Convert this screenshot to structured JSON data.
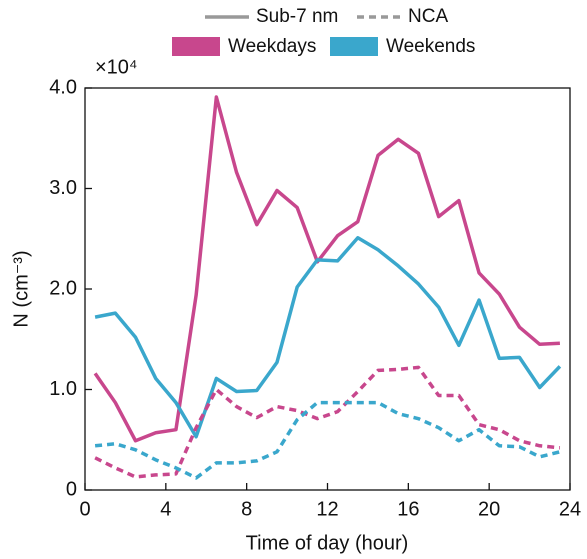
{
  "chart_data": {
    "type": "line",
    "xlabel": "Time of day (hour)",
    "ylabel": "N (cm⁻³)",
    "y_multiplier": "×10⁴",
    "xlim": [
      0,
      24
    ],
    "xticks": [
      0,
      4,
      8,
      12,
      16,
      20,
      24
    ],
    "ylim": [
      0,
      4
    ],
    "yticks": [
      0,
      {
        "value": 1,
        "label": "1.0"
      },
      {
        "value": 2,
        "label": "2.0"
      },
      {
        "value": 3,
        "label": "3.0"
      },
      {
        "value": 4,
        "label": "4.0"
      }
    ],
    "styles": [
      {
        "name": "Sub-7 nm",
        "dashed": false
      },
      {
        "name": "NCA",
        "dashed": true
      }
    ],
    "groups": [
      {
        "name": "Weekdays",
        "color": "#c8478d"
      },
      {
        "name": "Weekends",
        "color": "#3aa7cc"
      }
    ],
    "x": [
      0.5,
      1.5,
      2.5,
      3.5,
      4.5,
      5.5,
      6.5,
      7.5,
      8.5,
      9.5,
      10.5,
      11.5,
      12.5,
      13.5,
      14.5,
      15.5,
      16.5,
      17.5,
      18.5,
      19.5,
      20.5,
      21.5,
      22.5,
      23.5
    ],
    "series": [
      {
        "group": 0,
        "style": 0,
        "values": [
          1.16,
          0.87,
          0.49,
          0.57,
          0.6,
          1.94,
          3.91,
          3.16,
          2.64,
          2.98,
          2.81,
          2.27,
          2.53,
          2.67,
          3.33,
          3.49,
          3.35,
          2.72,
          2.88,
          2.16,
          1.95,
          1.62,
          1.45,
          1.46
        ]
      },
      {
        "group": 1,
        "style": 0,
        "values": [
          1.72,
          1.76,
          1.52,
          1.11,
          0.87,
          0.53,
          1.11,
          0.98,
          0.99,
          1.27,
          2.02,
          2.29,
          2.28,
          2.51,
          2.39,
          2.23,
          2.05,
          1.82,
          1.44,
          1.89,
          1.31,
          1.32,
          1.02,
          1.23
        ]
      },
      {
        "group": 0,
        "style": 1,
        "values": [
          0.32,
          0.22,
          0.13,
          0.15,
          0.16,
          0.62,
          1.0,
          0.83,
          0.72,
          0.83,
          0.79,
          0.71,
          0.78,
          0.98,
          1.19,
          1.2,
          1.22,
          0.94,
          0.94,
          0.65,
          0.6,
          0.49,
          0.44,
          0.42
        ]
      },
      {
        "group": 1,
        "style": 1,
        "values": [
          0.44,
          0.46,
          0.4,
          0.3,
          0.22,
          0.12,
          0.27,
          0.27,
          0.29,
          0.38,
          0.7,
          0.87,
          0.87,
          0.87,
          0.87,
          0.76,
          0.71,
          0.62,
          0.49,
          0.6,
          0.44,
          0.43,
          0.33,
          0.38
        ]
      }
    ]
  }
}
